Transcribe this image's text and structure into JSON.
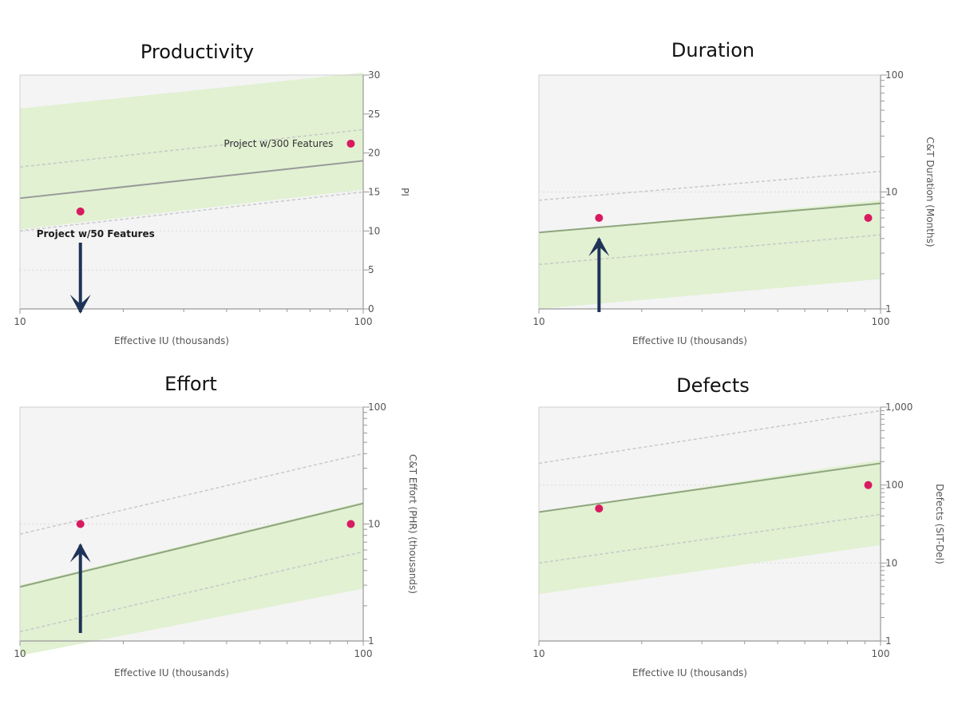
{
  "colors": {
    "band_fill": "#dff0d0",
    "bg_fill": "#f4f4f4",
    "trend_line": "#999999",
    "trend_line_green": "#8fa57e",
    "dashed_line": "#c8c8c8",
    "grid_dotted": "#dddddd",
    "point": "#d81b60",
    "arrow": "#1f3358",
    "axis": "#999999"
  },
  "chart_data": [
    {
      "id": "productivity",
      "type": "scatter",
      "title": "Productivity",
      "xlabel": "Effective IU (thousands)",
      "ylabel": "PI",
      "xscale": "log",
      "yscale": "linear",
      "xlim": [
        10,
        100
      ],
      "ylim": [
        0,
        30
      ],
      "xticks": [
        10,
        100
      ],
      "xtick_labels": [
        "10",
        "100"
      ],
      "yticks": [
        0,
        5,
        10,
        15,
        20,
        25,
        30
      ],
      "ytick_labels": [
        "0",
        "5",
        "10",
        "15",
        "20",
        "25",
        "30"
      ],
      "points": [
        {
          "x": 15,
          "y": 12.5
        },
        {
          "x": 92,
          "y": 21.2
        }
      ],
      "trend": {
        "x": [
          10,
          100
        ],
        "y": [
          14.2,
          19
        ]
      },
      "upper_dashed": {
        "x": [
          10,
          100
        ],
        "y": [
          18.2,
          23
        ]
      },
      "lower_dashed": {
        "x": [
          10,
          100
        ],
        "y": [
          10,
          15
        ]
      },
      "band": {
        "x": [
          10,
          100
        ],
        "lower": [
          10.2,
          15.3
        ],
        "upper": [
          25.7,
          30.3
        ]
      },
      "annotations": [
        {
          "text": "Project w/300 Features",
          "x": 92,
          "y": 21.2,
          "style": "normal"
        },
        {
          "text": "Project w/50 Features",
          "x": 15,
          "y": 12.5,
          "style": "bold"
        }
      ],
      "arrow": {
        "x": 15,
        "direction": "down"
      }
    },
    {
      "id": "duration",
      "type": "scatter",
      "title": "Duration",
      "xlabel": "Effective IU (thousands)",
      "ylabel": "C&T Duration (Months)",
      "xscale": "log",
      "yscale": "log",
      "xlim": [
        10,
        100
      ],
      "ylim": [
        1,
        100
      ],
      "xticks": [
        10,
        100
      ],
      "xtick_labels": [
        "10",
        "100"
      ],
      "yticks": [
        1,
        10,
        100
      ],
      "ytick_labels": [
        "1",
        "10",
        "100"
      ],
      "points": [
        {
          "x": 15,
          "y": 6
        },
        {
          "x": 92,
          "y": 6
        }
      ],
      "trend": {
        "x": [
          10,
          100
        ],
        "y": [
          4.5,
          8
        ]
      },
      "upper_dashed": {
        "x": [
          10,
          100
        ],
        "y": [
          8.5,
          15
        ]
      },
      "lower_dashed": {
        "x": [
          10,
          100
        ],
        "y": [
          2.4,
          4.3
        ]
      },
      "band": {
        "x": [
          10,
          100
        ],
        "lower": [
          1,
          1.8
        ],
        "upper": [
          4.5,
          8.5
        ]
      },
      "arrow": {
        "x": 15,
        "direction": "up"
      }
    },
    {
      "id": "effort",
      "type": "scatter",
      "title": "Effort",
      "xlabel": "Effective IU (thousands)",
      "ylabel": "C&T Effort (PHR) (thousands)",
      "xscale": "log",
      "yscale": "log",
      "xlim": [
        10,
        100
      ],
      "ylim": [
        1,
        100
      ],
      "xticks": [
        10,
        100
      ],
      "xtick_labels": [
        "10",
        "100"
      ],
      "yticks": [
        1,
        10,
        100
      ],
      "ytick_labels": [
        "1",
        "10",
        "100"
      ],
      "points": [
        {
          "x": 15,
          "y": 10
        },
        {
          "x": 92,
          "y": 10
        }
      ],
      "trend": {
        "x": [
          10,
          100
        ],
        "y": [
          2.9,
          15
        ]
      },
      "upper_dashed": {
        "x": [
          10,
          100
        ],
        "y": [
          8.2,
          40
        ]
      },
      "lower_dashed": {
        "x": [
          10,
          100
        ],
        "y": [
          1.2,
          5.8
        ]
      },
      "band": {
        "x": [
          10,
          100
        ],
        "lower": [
          0.75,
          2.8
        ],
        "upper": [
          3.0,
          15.5
        ]
      },
      "arrow": {
        "x": 15,
        "direction": "up"
      }
    },
    {
      "id": "defects",
      "type": "scatter",
      "title": "Defects",
      "xlabel": "Effective IU (thousands)",
      "ylabel": "Defects (SIT-Del)",
      "xscale": "log",
      "yscale": "log",
      "xlim": [
        10,
        100
      ],
      "ylim": [
        1,
        1000
      ],
      "xticks": [
        10,
        100
      ],
      "xtick_labels": [
        "10",
        "100"
      ],
      "yticks": [
        1,
        10,
        100,
        1000
      ],
      "ytick_labels": [
        "1",
        "10",
        "100",
        "1,000"
      ],
      "points": [
        {
          "x": 15,
          "y": 50
        },
        {
          "x": 92,
          "y": 100
        }
      ],
      "trend": {
        "x": [
          10,
          100
        ],
        "y": [
          45,
          190
        ]
      },
      "upper_dashed": {
        "x": [
          10,
          100
        ],
        "y": [
          190,
          900
        ]
      },
      "lower_dashed": {
        "x": [
          10,
          100
        ],
        "y": [
          10,
          42
        ]
      },
      "band": {
        "x": [
          10,
          100
        ],
        "lower": [
          4,
          17
        ],
        "upper": [
          45,
          210
        ]
      }
    }
  ]
}
